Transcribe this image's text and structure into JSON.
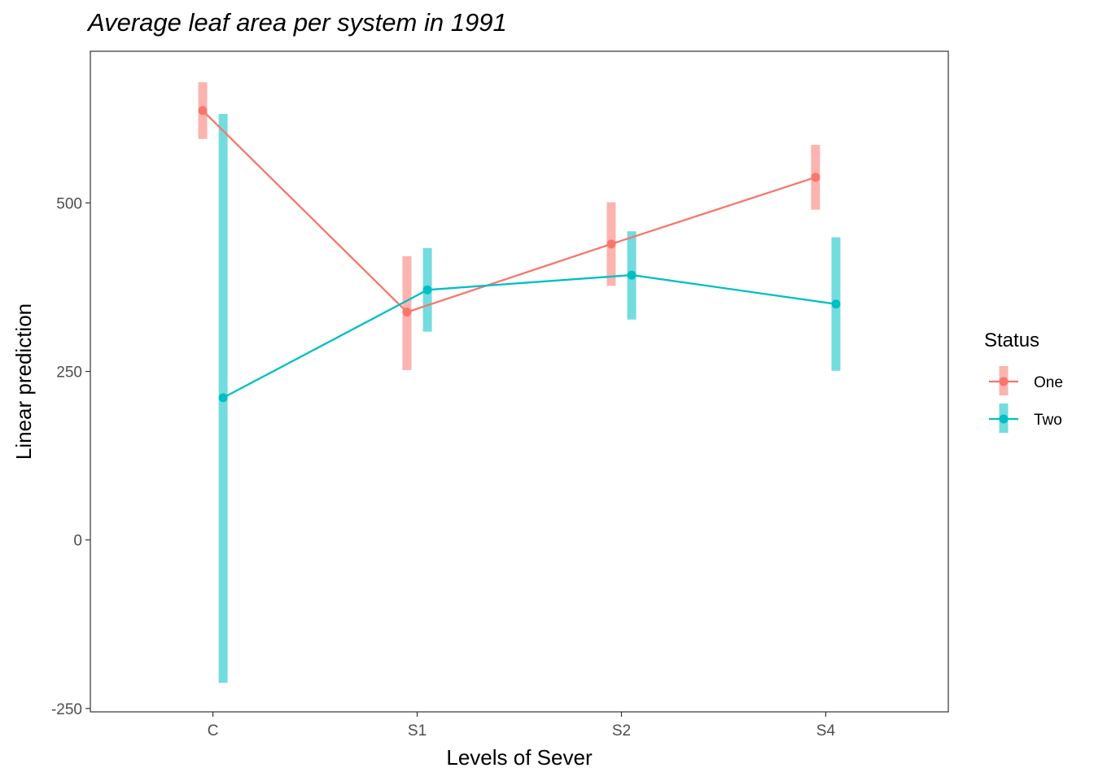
{
  "chart_data": {
    "type": "line",
    "title": "Average leaf area per system in 1991",
    "xlabel": "Levels of Sever",
    "ylabel": "Linear prediction",
    "categories": [
      "C",
      "S1",
      "S2",
      "S4"
    ],
    "ylim": [
      -255,
      725
    ],
    "yticks": [
      -250,
      0,
      250,
      500
    ],
    "grid": false,
    "legend": {
      "title": "Status",
      "placement": "right"
    },
    "series": [
      {
        "name": "One",
        "color": "#F8766D",
        "values": [
          637,
          338,
          439,
          538
        ],
        "lower": [
          595,
          252,
          377,
          490
        ],
        "upper": [
          679,
          421,
          501,
          586
        ]
      },
      {
        "name": "Two",
        "color": "#00BFC4",
        "values": [
          211,
          371,
          393,
          350
        ],
        "lower": [
          -212,
          309,
          327,
          251
        ],
        "upper": [
          632,
          433,
          458,
          449
        ]
      }
    ]
  }
}
